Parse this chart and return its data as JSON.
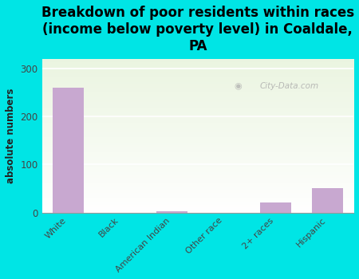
{
  "title": "Breakdown of poor residents within races\n(income below poverty level) in Coaldale,\nPA",
  "categories": [
    "White",
    "Black",
    "American Indian",
    "Other race",
    "2+ races",
    "Hispanic"
  ],
  "values": [
    260,
    0,
    2,
    0,
    20,
    50
  ],
  "bar_color": "#c8a8d0",
  "ylabel": "absolute numbers",
  "ylim": [
    0,
    320
  ],
  "yticks": [
    0,
    100,
    200,
    300
  ],
  "background_color": "#00e5e5",
  "title_fontsize": 12,
  "watermark": "City-Data.com",
  "grid_color": "#dddddd",
  "plot_bg_color": "#eef4e8"
}
